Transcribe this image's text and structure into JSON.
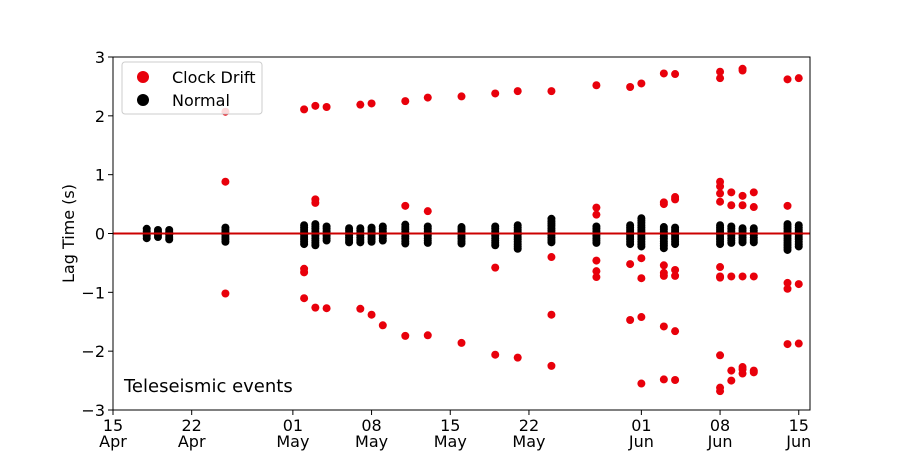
{
  "chart_data": {
    "type": "scatter",
    "ylabel": "Lag Time (s)",
    "xlabel": "",
    "ylim": [
      -3,
      3
    ],
    "xlim": [
      "2021-04-15",
      "2021-06-16"
    ],
    "yticks": [
      -3,
      -2,
      -1,
      0,
      1,
      2,
      3
    ],
    "ytick_labels": [
      "−3",
      "−2",
      "−1",
      "0",
      "1",
      "2",
      "3"
    ],
    "xticks": [
      {
        "date": "2021-04-15",
        "day": "15",
        "month": "Apr"
      },
      {
        "date": "2021-04-22",
        "day": "22",
        "month": "Apr"
      },
      {
        "date": "2021-05-01",
        "day": "01",
        "month": "May"
      },
      {
        "date": "2021-05-08",
        "day": "08",
        "month": "May"
      },
      {
        "date": "2021-05-15",
        "day": "15",
        "month": "May"
      },
      {
        "date": "2021-05-22",
        "day": "22",
        "month": "May"
      },
      {
        "date": "2021-06-01",
        "day": "01",
        "month": "Jun"
      },
      {
        "date": "2021-06-08",
        "day": "08",
        "month": "Jun"
      },
      {
        "date": "2021-06-15",
        "day": "15",
        "month": "Jun"
      }
    ],
    "annotation": "Teleseismic events",
    "reference_line": {
      "y": 0,
      "color": "#cc0000"
    },
    "legend_position": "top-left",
    "grid": false,
    "series": [
      {
        "name": "Clock Drift",
        "color": "#e8000b",
        "points": [
          [
            "2021-04-25",
            2.07
          ],
          [
            "2021-04-25",
            0.88
          ],
          [
            "2021-04-25",
            -1.02
          ],
          [
            "2021-05-02",
            2.11
          ],
          [
            "2021-05-02",
            -0.6
          ],
          [
            "2021-05-02",
            -0.66
          ],
          [
            "2021-05-02",
            -1.1
          ],
          [
            "2021-05-03",
            2.17
          ],
          [
            "2021-05-03",
            0.58
          ],
          [
            "2021-05-03",
            0.52
          ],
          [
            "2021-05-03",
            -1.26
          ],
          [
            "2021-05-04",
            2.15
          ],
          [
            "2021-05-04",
            -1.27
          ],
          [
            "2021-05-07",
            2.19
          ],
          [
            "2021-05-07",
            -1.28
          ],
          [
            "2021-05-08",
            2.21
          ],
          [
            "2021-05-08",
            -1.38
          ],
          [
            "2021-05-09",
            -1.56
          ],
          [
            "2021-05-11",
            2.25
          ],
          [
            "2021-05-11",
            0.47
          ],
          [
            "2021-05-11",
            -1.74
          ],
          [
            "2021-05-13",
            2.31
          ],
          [
            "2021-05-13",
            0.38
          ],
          [
            "2021-05-13",
            -1.73
          ],
          [
            "2021-05-16",
            2.33
          ],
          [
            "2021-05-16",
            -1.86
          ],
          [
            "2021-05-19",
            2.38
          ],
          [
            "2021-05-19",
            -0.58
          ],
          [
            "2021-05-19",
            -2.06
          ],
          [
            "2021-05-21",
            2.42
          ],
          [
            "2021-05-21",
            -2.11
          ],
          [
            "2021-05-24",
            2.42
          ],
          [
            "2021-05-24",
            -0.4
          ],
          [
            "2021-05-24",
            -1.38
          ],
          [
            "2021-05-24",
            -2.25
          ],
          [
            "2021-05-28",
            2.52
          ],
          [
            "2021-05-28",
            0.44
          ],
          [
            "2021-05-28",
            0.32
          ],
          [
            "2021-05-28",
            -0.46
          ],
          [
            "2021-05-28",
            -0.64
          ],
          [
            "2021-05-28",
            -0.74
          ],
          [
            "2021-05-31",
            2.49
          ],
          [
            "2021-05-31",
            -0.52
          ],
          [
            "2021-05-31",
            -1.47
          ],
          [
            "2021-06-01",
            2.55
          ],
          [
            "2021-06-01",
            -0.42
          ],
          [
            "2021-06-01",
            -0.76
          ],
          [
            "2021-06-01",
            -1.42
          ],
          [
            "2021-06-01",
            -2.55
          ],
          [
            "2021-06-03",
            2.72
          ],
          [
            "2021-06-03",
            0.53
          ],
          [
            "2021-06-03",
            0.5
          ],
          [
            "2021-06-03",
            -0.54
          ],
          [
            "2021-06-03",
            -0.67
          ],
          [
            "2021-06-03",
            -0.72
          ],
          [
            "2021-06-03",
            -1.58
          ],
          [
            "2021-06-03",
            -2.48
          ],
          [
            "2021-06-04",
            2.71
          ],
          [
            "2021-06-04",
            0.62
          ],
          [
            "2021-06-04",
            0.58
          ],
          [
            "2021-06-04",
            -0.62
          ],
          [
            "2021-06-04",
            -0.72
          ],
          [
            "2021-06-04",
            -1.66
          ],
          [
            "2021-06-04",
            -2.49
          ],
          [
            "2021-06-08",
            2.75
          ],
          [
            "2021-06-08",
            2.64
          ],
          [
            "2021-06-08",
            0.88
          ],
          [
            "2021-06-08",
            0.8
          ],
          [
            "2021-06-08",
            0.68
          ],
          [
            "2021-06-08",
            0.54
          ],
          [
            "2021-06-08",
            -0.57
          ],
          [
            "2021-06-08",
            -0.73
          ],
          [
            "2021-06-08",
            -0.75
          ],
          [
            "2021-06-08",
            -2.07
          ],
          [
            "2021-06-08",
            -2.62
          ],
          [
            "2021-06-08",
            -2.68
          ],
          [
            "2021-06-09",
            0.7
          ],
          [
            "2021-06-09",
            0.48
          ],
          [
            "2021-06-09",
            -0.73
          ],
          [
            "2021-06-09",
            -2.33
          ],
          [
            "2021-06-09",
            -2.5
          ],
          [
            "2021-06-10",
            2.77
          ],
          [
            "2021-06-10",
            2.8
          ],
          [
            "2021-06-10",
            0.64
          ],
          [
            "2021-06-10",
            0.48
          ],
          [
            "2021-06-10",
            -0.73
          ],
          [
            "2021-06-10",
            -2.27
          ],
          [
            "2021-06-10",
            -2.31
          ],
          [
            "2021-06-10",
            -2.38
          ],
          [
            "2021-06-11",
            0.7
          ],
          [
            "2021-06-11",
            0.45
          ],
          [
            "2021-06-11",
            -0.73
          ],
          [
            "2021-06-11",
            -2.33
          ],
          [
            "2021-06-11",
            -2.36
          ],
          [
            "2021-06-14",
            2.62
          ],
          [
            "2021-06-14",
            0.47
          ],
          [
            "2021-06-14",
            -0.84
          ],
          [
            "2021-06-14",
            -0.94
          ],
          [
            "2021-06-14",
            -1.88
          ],
          [
            "2021-06-15",
            2.64
          ],
          [
            "2021-06-15",
            -0.86
          ],
          [
            "2021-06-15",
            -1.87
          ]
        ]
      },
      {
        "name": "Normal",
        "color": "#000000",
        "clusters": [
          {
            "date": "2021-04-18",
            "min": -0.08,
            "max": 0.08
          },
          {
            "date": "2021-04-19",
            "min": -0.06,
            "max": 0.06
          },
          {
            "date": "2021-04-20",
            "min": -0.1,
            "max": 0.06
          },
          {
            "date": "2021-04-25",
            "min": -0.14,
            "max": 0.1
          },
          {
            "date": "2021-05-02",
            "min": -0.18,
            "max": 0.14
          },
          {
            "date": "2021-05-03",
            "min": -0.2,
            "max": 0.16
          },
          {
            "date": "2021-05-04",
            "min": -0.12,
            "max": 0.12
          },
          {
            "date": "2021-05-06",
            "min": -0.15,
            "max": 0.12
          },
          {
            "date": "2021-05-07",
            "min": -0.15,
            "max": 0.12
          },
          {
            "date": "2021-05-08",
            "min": -0.14,
            "max": 0.12
          },
          {
            "date": "2021-05-09",
            "min": -0.12,
            "max": 0.12
          },
          {
            "date": "2021-05-11",
            "min": -0.17,
            "max": 0.16
          },
          {
            "date": "2021-05-13",
            "min": -0.16,
            "max": 0.14
          },
          {
            "date": "2021-05-16",
            "min": -0.17,
            "max": 0.13
          },
          {
            "date": "2021-05-19",
            "min": -0.2,
            "max": 0.14
          },
          {
            "date": "2021-05-21",
            "min": -0.26,
            "max": 0.14
          },
          {
            "date": "2021-05-24",
            "min": -0.15,
            "max": 0.28
          },
          {
            "date": "2021-05-28",
            "min": -0.16,
            "max": 0.14
          },
          {
            "date": "2021-05-31",
            "min": -0.18,
            "max": 0.14
          },
          {
            "date": "2021-06-01",
            "min": -0.22,
            "max": 0.29
          },
          {
            "date": "2021-06-03",
            "min": -0.25,
            "max": 0.12
          },
          {
            "date": "2021-06-04",
            "min": -0.18,
            "max": 0.1
          },
          {
            "date": "2021-06-08",
            "min": -0.18,
            "max": 0.14
          },
          {
            "date": "2021-06-09",
            "min": -0.16,
            "max": 0.14
          },
          {
            "date": "2021-06-10",
            "min": -0.15,
            "max": 0.12
          },
          {
            "date": "2021-06-11",
            "min": -0.15,
            "max": 0.12
          },
          {
            "date": "2021-06-14",
            "min": -0.28,
            "max": 0.18
          },
          {
            "date": "2021-06-15",
            "min": -0.22,
            "max": 0.16
          }
        ]
      }
    ]
  }
}
